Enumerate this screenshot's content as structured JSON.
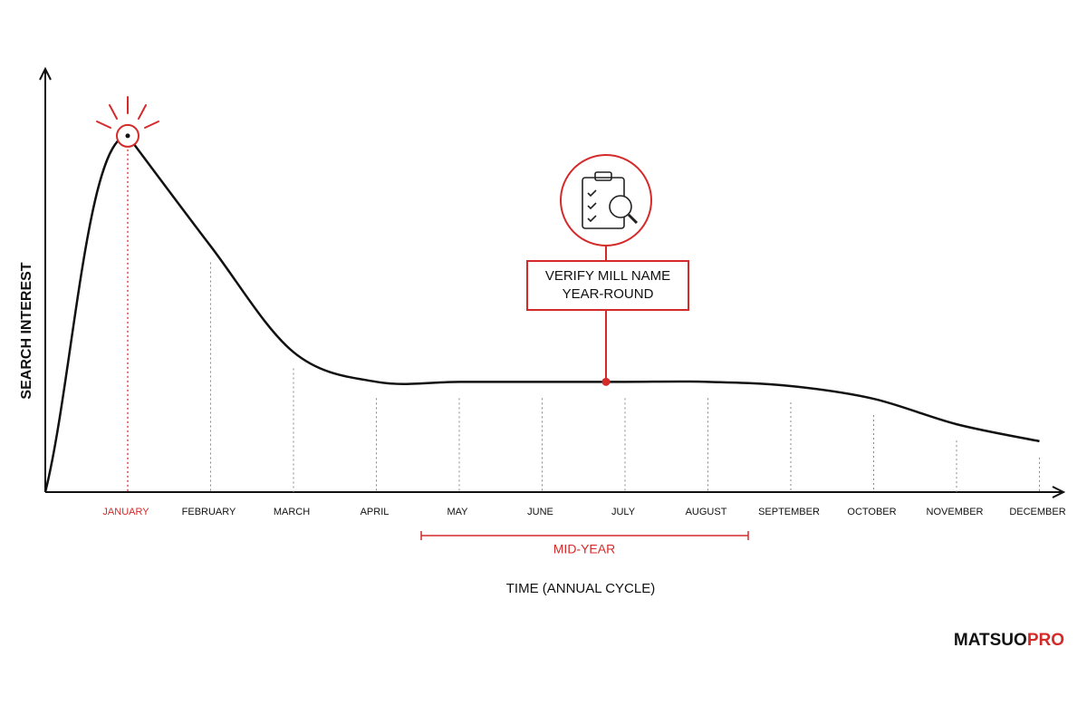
{
  "chart_data": {
    "type": "line",
    "y_label": "SEARCH INTEREST",
    "x_label": "TIME (ANNUAL CYCLE)",
    "categories": [
      "JANUARY",
      "FEBRUARY",
      "MARCH",
      "APRIL",
      "MAY",
      "JUNE",
      "JULY",
      "AUGUST",
      "SEPTEMBER",
      "OCTOBER",
      "NOVEMBER",
      "DECEMBER"
    ],
    "series": [
      {
        "name": "Search interest",
        "color": "#111111",
        "values": [
          84,
          58,
          33,
          26,
          26,
          26,
          26,
          26,
          25,
          22,
          16,
          12
        ]
      }
    ],
    "ylim": [
      0,
      100
    ],
    "highlight_color": "#d42a2a",
    "highlight_category": "JANUARY",
    "annotation": {
      "category": "JULY",
      "lines": [
        "VERIFY MILL NAME",
        "YEAR-ROUND"
      ]
    },
    "span_label": "MID-YEAR",
    "brand": {
      "main": "MATSUO",
      "accent": "PRO"
    }
  }
}
